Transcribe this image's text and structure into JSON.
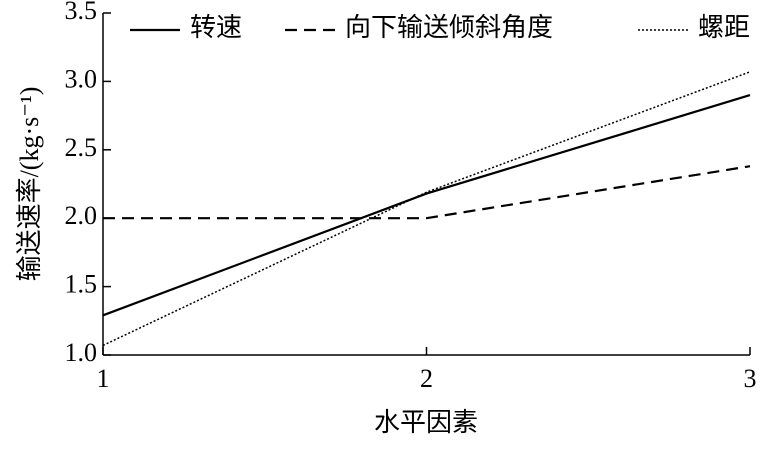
{
  "chart_data": {
    "type": "line",
    "x_label": "水平因素",
    "y_label": "输送速率/(kg·s⁻¹)",
    "x": [
      1,
      2,
      3
    ],
    "xlim": [
      1,
      3
    ],
    "xticks": [
      1,
      2,
      3
    ],
    "ylim": [
      1,
      3.5
    ],
    "yticks": [
      {
        "value": 1,
        "label": "1.0"
      },
      1.5,
      {
        "value": 2,
        "label": "2.0"
      },
      2.5,
      {
        "value": 3,
        "label": "3.0"
      },
      3.5
    ],
    "legend": "top",
    "series": [
      {
        "name": "转速",
        "color": "#000000",
        "line_style": "solid",
        "values": [
          1.29,
          2.18,
          2.9
        ]
      },
      {
        "name": "向下输送倾斜角度",
        "color": "#000000",
        "line_style": "dashed",
        "values": [
          2.0,
          2.0,
          2.38
        ]
      },
      {
        "name": "螺距",
        "color": "#000000",
        "line_style": "dotted",
        "values": [
          1.07,
          2.19,
          3.07
        ]
      }
    ]
  }
}
